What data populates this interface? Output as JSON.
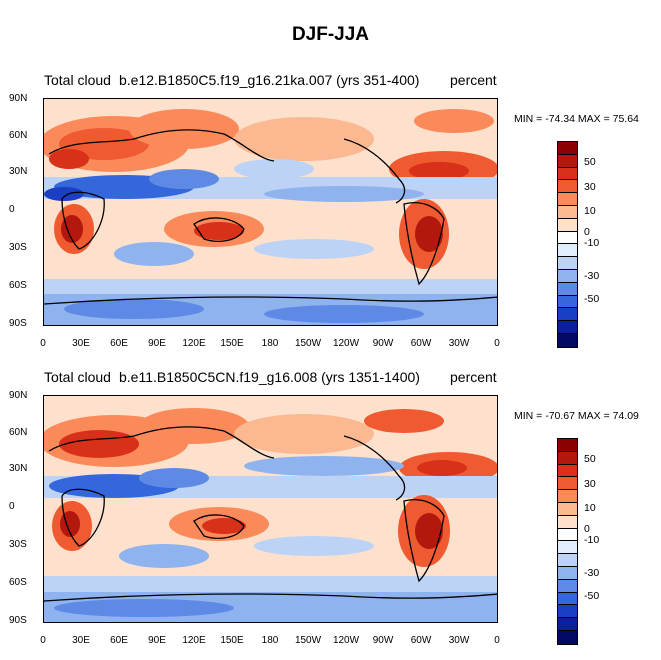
{
  "title": "DJF-JJA",
  "lat_ticks": [
    "90N",
    "60N",
    "30N",
    "0",
    "30S",
    "60S",
    "90S"
  ],
  "lon_ticks": [
    "0",
    "30E",
    "60E",
    "90E",
    "120E",
    "150E",
    "180",
    "150W",
    "120W",
    "90W",
    "60W",
    "30W",
    "0"
  ],
  "colorbar": {
    "colors": [
      "#8b0000",
      "#b3170d",
      "#d9301a",
      "#f05a30",
      "#fb8a5a",
      "#fcb891",
      "#fde1cc",
      "#ffffff",
      "#e2edfb",
      "#bcd3f6",
      "#8fb3ef",
      "#5e8ae6",
      "#3466dc",
      "#1a3fc4",
      "#0b1f99",
      "#020a66"
    ],
    "labels": [
      "50",
      "30",
      "10",
      "0",
      "-10",
      "-30",
      "-50"
    ]
  },
  "panels": [
    {
      "left_label": "Total cloud",
      "center_label": "b.e12.B1850C5.f19_g16.21ka.007 (yrs 351-400)",
      "right_label": "percent",
      "min_max": "MIN = -74.34 MAX =  75.64"
    },
    {
      "left_label": "Total cloud",
      "center_label": "b.e11.B1850C5CN.f19_g16.008 (yrs 1351-1400)",
      "right_label": "percent",
      "min_max": "MIN = -70.67 MAX =  74.09"
    }
  ]
}
